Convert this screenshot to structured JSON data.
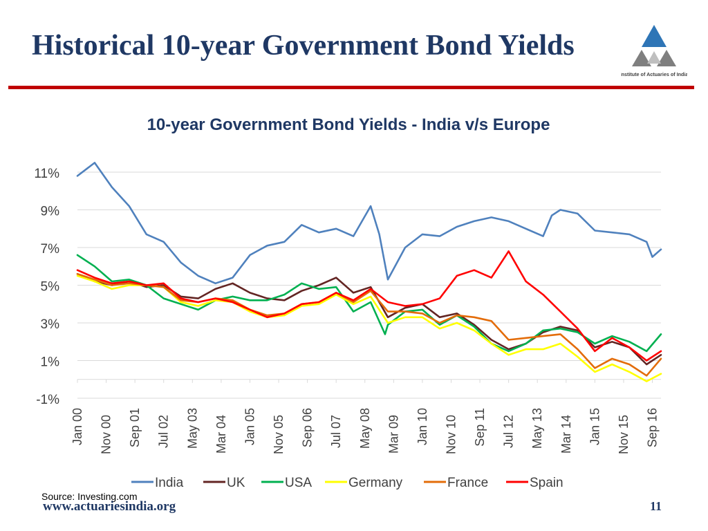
{
  "slide": {
    "title": "Historical 10-year Government Bond Yields",
    "logo_text": "Institute of Actuaries of India",
    "source": "Source: Investing.com",
    "url": "www.actuariesindia.org",
    "page_number": "11"
  },
  "colors": {
    "title": "#1f3864",
    "rule": "#c00000",
    "logo_blue": "#2e75b6",
    "logo_grey": "#7f7f7f"
  },
  "chart_data": {
    "type": "line",
    "title": "10-year Government Bond Yields - India v/s Europe",
    "xlabel": "",
    "ylabel": "",
    "ylim": [
      -1,
      11
    ],
    "yticks": [
      -1,
      1,
      3,
      5,
      7,
      9,
      11
    ],
    "ytick_labels": [
      "-1%",
      "1%",
      "3%",
      "5%",
      "7%",
      "9%",
      "11%"
    ],
    "x_start": "Jan 00",
    "x_end": "Dec 16",
    "x_tick_labels": [
      "Jan 00",
      "Nov 00",
      "Sep 01",
      "Jul 02",
      "May 03",
      "Mar 04",
      "Jan 05",
      "Nov 05",
      "Sep 06",
      "Jul 07",
      "May 08",
      "Mar 09",
      "Jan 10",
      "Nov 10",
      "Sep 11",
      "Jul 12",
      "May 13",
      "Mar 14",
      "Jan 15",
      "Nov 15",
      "Sep 16"
    ],
    "legend_position": "bottom",
    "grid": true,
    "series": [
      {
        "name": "India",
        "color": "#4f81bd",
        "x": [
          "Jan 00",
          "Jul 00",
          "Jan 01",
          "Jul 01",
          "Jan 02",
          "Jul 02",
          "Jan 03",
          "Jul 03",
          "Jan 04",
          "Jul 04",
          "Jan 05",
          "Jul 05",
          "Jan 06",
          "Jul 06",
          "Jan 07",
          "Jul 07",
          "Jan 08",
          "Jul 08",
          "Oct 08",
          "Jan 09",
          "Jul 09",
          "Jan 10",
          "Jul 10",
          "Jan 11",
          "Jul 11",
          "Jan 12",
          "Jul 12",
          "Jan 13",
          "Jul 13",
          "Oct 13",
          "Jan 14",
          "Jul 14",
          "Jan 15",
          "Jul 15",
          "Jan 16",
          "Jul 16",
          "Sep 16",
          "Dec 16"
        ],
        "values": [
          10.8,
          11.5,
          10.2,
          9.2,
          7.7,
          7.3,
          6.2,
          5.5,
          5.1,
          5.4,
          6.6,
          7.1,
          7.3,
          8.2,
          7.8,
          8.0,
          7.6,
          9.2,
          7.7,
          5.3,
          7.0,
          7.7,
          7.6,
          8.1,
          8.4,
          8.6,
          8.4,
          8.0,
          7.6,
          8.7,
          9.0,
          8.8,
          7.9,
          7.8,
          7.7,
          7.3,
          6.5,
          6.9
        ]
      },
      {
        "name": "UK",
        "color": "#632523",
        "x": [
          "Jan 00",
          "Jul 00",
          "Jan 01",
          "Jul 01",
          "Jan 02",
          "Jul 02",
          "Jan 03",
          "Jul 03",
          "Jan 04",
          "Jul 04",
          "Jan 05",
          "Jul 05",
          "Jan 06",
          "Jul 06",
          "Jan 07",
          "Jul 07",
          "Jan 08",
          "Jul 08",
          "Jan 09",
          "Jul 09",
          "Jan 10",
          "Jul 10",
          "Jan 11",
          "Jul 11",
          "Jan 12",
          "Jul 12",
          "Jan 13",
          "Jul 13",
          "Jan 14",
          "Jul 14",
          "Jan 15",
          "Jul 15",
          "Jan 16",
          "Jul 16",
          "Dec 16"
        ],
        "values": [
          5.6,
          5.2,
          5.0,
          5.2,
          4.9,
          5.0,
          4.4,
          4.3,
          4.8,
          5.1,
          4.6,
          4.3,
          4.2,
          4.7,
          5.0,
          5.4,
          4.6,
          4.9,
          3.3,
          3.8,
          4.0,
          3.3,
          3.5,
          2.9,
          2.1,
          1.6,
          1.9,
          2.5,
          2.8,
          2.6,
          1.7,
          2.0,
          1.7,
          0.8,
          1.3
        ]
      },
      {
        "name": "USA",
        "color": "#00b050",
        "x": [
          "Jan 00",
          "Jul 00",
          "Jan 01",
          "Jul 01",
          "Jan 02",
          "Jul 02",
          "Jan 03",
          "Jul 03",
          "Jan 04",
          "Jul 04",
          "Jan 05",
          "Jul 05",
          "Jan 06",
          "Jul 06",
          "Jan 07",
          "Jul 07",
          "Jan 08",
          "Jul 08",
          "Dec 08",
          "Jan 09",
          "Jul 09",
          "Jan 10",
          "Jul 10",
          "Jan 11",
          "Jul 11",
          "Jan 12",
          "Jul 12",
          "Jan 13",
          "Jul 13",
          "Jan 14",
          "Jul 14",
          "Jan 15",
          "Jul 15",
          "Jan 16",
          "Jul 16",
          "Dec 16"
        ],
        "values": [
          6.6,
          6.0,
          5.2,
          5.3,
          5.0,
          4.3,
          4.0,
          3.7,
          4.2,
          4.4,
          4.2,
          4.2,
          4.5,
          5.1,
          4.8,
          4.9,
          3.6,
          4.1,
          2.4,
          2.9,
          3.6,
          3.7,
          2.9,
          3.4,
          2.8,
          1.9,
          1.5,
          1.9,
          2.6,
          2.7,
          2.5,
          1.9,
          2.3,
          2.0,
          1.5,
          2.4
        ]
      },
      {
        "name": "Germany",
        "color": "#ffff00",
        "x": [
          "Jan 00",
          "Jul 00",
          "Jan 01",
          "Jul 01",
          "Jan 02",
          "Jul 02",
          "Jan 03",
          "Jul 03",
          "Jan 04",
          "Jul 04",
          "Jan 05",
          "Jul 05",
          "Jan 06",
          "Jul 06",
          "Jan 07",
          "Jul 07",
          "Jan 08",
          "Jul 08",
          "Jan 09",
          "Jul 09",
          "Jan 10",
          "Jul 10",
          "Jan 11",
          "Jul 11",
          "Jan 12",
          "Jul 12",
          "Jan 13",
          "Jul 13",
          "Jan 14",
          "Jul 14",
          "Jan 15",
          "Jul 15",
          "Jan 16",
          "Jul 16",
          "Dec 16"
        ],
        "values": [
          5.5,
          5.2,
          4.8,
          5.0,
          5.0,
          4.9,
          4.1,
          3.9,
          4.2,
          4.1,
          3.6,
          3.3,
          3.4,
          3.9,
          4.0,
          4.5,
          4.0,
          4.4,
          3.0,
          3.3,
          3.3,
          2.7,
          3.0,
          2.6,
          1.9,
          1.3,
          1.6,
          1.6,
          1.9,
          1.2,
          0.4,
          0.8,
          0.4,
          -0.1,
          0.3
        ]
      },
      {
        "name": "France",
        "color": "#e36c09",
        "x": [
          "Jan 00",
          "Jul 00",
          "Jan 01",
          "Jul 01",
          "Jan 02",
          "Jul 02",
          "Jan 03",
          "Jul 03",
          "Jan 04",
          "Jul 04",
          "Jan 05",
          "Jul 05",
          "Jan 06",
          "Jul 06",
          "Jan 07",
          "Jul 07",
          "Jan 08",
          "Jul 08",
          "Jan 09",
          "Jul 09",
          "Jan 10",
          "Jul 10",
          "Jan 11",
          "Jul 11",
          "Jan 12",
          "Jul 12",
          "Jan 13",
          "Jul 13",
          "Jan 14",
          "Jul 14",
          "Jan 15",
          "Jul 15",
          "Jan 16",
          "Jul 16",
          "Dec 16"
        ],
        "values": [
          5.6,
          5.3,
          5.0,
          5.1,
          5.0,
          4.9,
          4.2,
          4.1,
          4.3,
          4.2,
          3.7,
          3.4,
          3.5,
          4.0,
          4.1,
          4.6,
          4.1,
          4.7,
          3.6,
          3.6,
          3.5,
          3.0,
          3.4,
          3.3,
          3.1,
          2.1,
          2.2,
          2.3,
          2.4,
          1.6,
          0.6,
          1.1,
          0.8,
          0.2,
          1.1
        ]
      },
      {
        "name": "Spain",
        "color": "#ff0000",
        "x": [
          "Jan 00",
          "Jul 00",
          "Jan 01",
          "Jul 01",
          "Jan 02",
          "Jul 02",
          "Jan 03",
          "Jul 03",
          "Jan 04",
          "Jul 04",
          "Jan 05",
          "Jul 05",
          "Jan 06",
          "Jul 06",
          "Jan 07",
          "Jul 07",
          "Jan 08",
          "Jul 08",
          "Jan 09",
          "Jul 09",
          "Jan 10",
          "Jul 10",
          "Jan 11",
          "Jul 11",
          "Jan 12",
          "Jul 12",
          "Jan 13",
          "Jul 13",
          "Jan 14",
          "Jul 14",
          "Jan 15",
          "Jul 15",
          "Jan 16",
          "Jul 16",
          "Dec 16"
        ],
        "values": [
          5.8,
          5.4,
          5.1,
          5.2,
          5.0,
          5.1,
          4.3,
          4.1,
          4.3,
          4.1,
          3.7,
          3.3,
          3.5,
          4.0,
          4.1,
          4.6,
          4.2,
          4.8,
          4.1,
          3.9,
          4.0,
          4.3,
          5.5,
          5.8,
          5.4,
          6.8,
          5.2,
          4.5,
          3.6,
          2.7,
          1.5,
          2.2,
          1.7,
          1.0,
          1.5
        ]
      }
    ]
  }
}
